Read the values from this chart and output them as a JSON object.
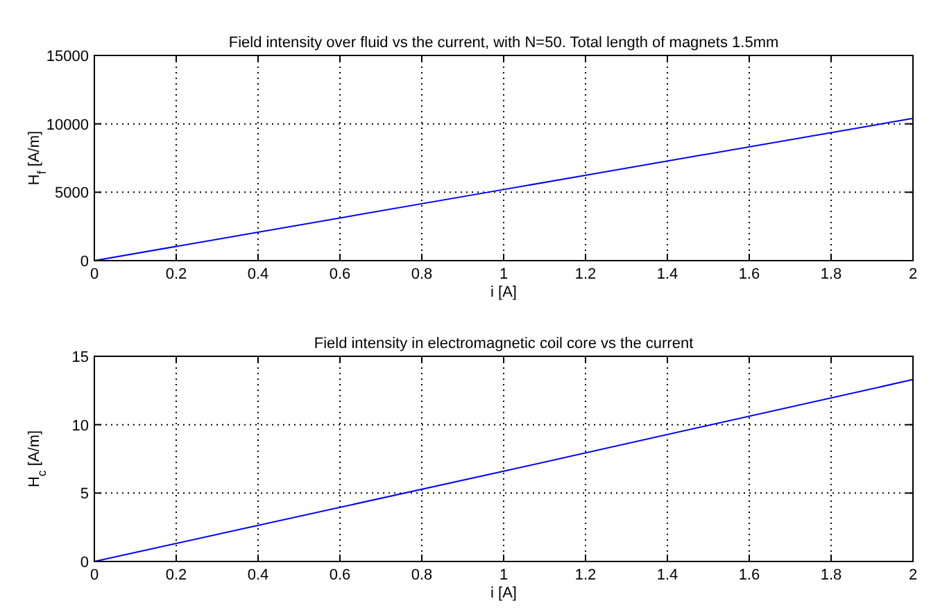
{
  "chart_data": [
    {
      "type": "line",
      "title": "Field intensity over fluid vs the current, with N=50. Total length of magnets 1.5mm",
      "xlabel": "i [A]",
      "ylabel": "H$_{f}$ [A/m]",
      "x": [
        0,
        1,
        2
      ],
      "series": [
        {
          "color": "#0000ff",
          "values": [
            0,
            5200,
            10400
          ]
        }
      ],
      "xlim": [
        0,
        2
      ],
      "xticks": [
        0,
        0.2,
        0.4,
        0.6,
        0.8,
        1,
        1.2,
        1.4,
        1.6,
        1.8,
        2
      ],
      "ylim": [
        0,
        15000
      ],
      "yticks": [
        0,
        5000,
        10000,
        15000
      ],
      "grid": true,
      "line_style": "solid"
    },
    {
      "type": "line",
      "title": "Field intensity in electromagnetic coil core vs the current",
      "xlabel": "i [A]",
      "ylabel": "H$_{c}$ [A/m]",
      "x": [
        0,
        1,
        2
      ],
      "series": [
        {
          "color": "#0000ff",
          "values": [
            0,
            6.6,
            13.3
          ]
        }
      ],
      "xlim": [
        0,
        2
      ],
      "xticks": [
        0,
        0.2,
        0.4,
        0.6,
        0.8,
        1,
        1.2,
        1.4,
        1.6,
        1.8,
        2
      ],
      "ylim": [
        0,
        15
      ],
      "yticks": [
        0,
        5,
        10,
        15
      ],
      "grid": true,
      "line_style": "solid"
    }
  ]
}
